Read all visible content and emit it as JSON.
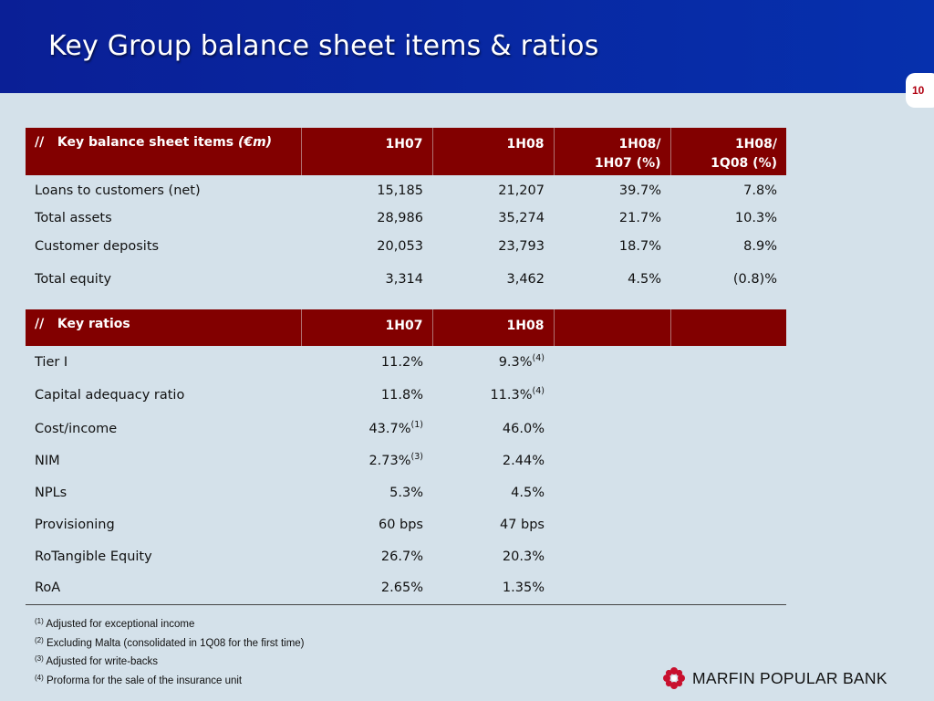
{
  "slide": {
    "title": "Key Group balance sheet items & ratios",
    "page_number": "10",
    "brand": "MARFIN POPULAR BANK",
    "colors": {
      "title_bar": "#0a1f96",
      "table_header": "#820000",
      "background": "#d4e1ea"
    }
  },
  "balance": {
    "headers": {
      "prefix": "//",
      "label": "Key balance sheet items",
      "unit": "(€m)",
      "c1": "1H07",
      "c2": "1H08",
      "c3a": "1H08/",
      "c3b": "1H07 (%)",
      "c4a": "1H08/",
      "c4b": "1Q08 (%)"
    },
    "rows": [
      {
        "label": "Loans to customers (net)",
        "h07": "15,185",
        "h08": "21,207",
        "yoy": "39.7%",
        "qoq": "7.8%"
      },
      {
        "label": "Total assets",
        "h07": "28,986",
        "h08": "35,274",
        "yoy": "21.7%",
        "qoq": "10.3%"
      },
      {
        "label": "Customer deposits",
        "h07": "20,053",
        "h08": "23,793",
        "yoy": "18.7%",
        "qoq": "8.9%"
      },
      {
        "label": "Total equity",
        "h07": "3,314",
        "h08": "3,462",
        "yoy": "4.5%",
        "qoq": "(0.8)%"
      }
    ]
  },
  "ratios": {
    "headers": {
      "prefix": "//",
      "label": "Key ratios",
      "c1": "1H07",
      "c2": "1H08"
    },
    "rows": [
      {
        "label": "Tier I",
        "h07": "11.2%",
        "h07_note": "",
        "h08": "9.3%",
        "h08_note": "(4)"
      },
      {
        "label": "Capital adequacy ratio",
        "h07": "11.8%",
        "h07_note": "",
        "h08": "11.3%",
        "h08_note": "(4)"
      },
      {
        "label": "Cost/income",
        "h07": "43.7%",
        "h07_note": "(1)",
        "h08": "46.0%",
        "h08_note": ""
      },
      {
        "label": "NIM",
        "h07": "2.73%",
        "h07_note": "(3)",
        "h08": "2.44%",
        "h08_note": ""
      },
      {
        "label": "NPLs",
        "h07": "5.3%",
        "h07_note": "",
        "h08": "4.5%",
        "h08_note": ""
      },
      {
        "label": "Provisioning",
        "h07": "60 bps",
        "h07_note": "",
        "h08": "47 bps",
        "h08_note": ""
      },
      {
        "label": "RoTangible Equity",
        "h07": "26.7%",
        "h07_note": "",
        "h08": "20.3%",
        "h08_note": ""
      },
      {
        "label": "RoA",
        "h07": "2.65%",
        "h07_note": "",
        "h08": "1.35%",
        "h08_note": ""
      }
    ]
  },
  "footnotes": [
    {
      "mark": "(1)",
      "text": "Adjusted for exceptional income"
    },
    {
      "mark": "(2)",
      "text": "Excluding Malta (consolidated in 1Q08 for the first time)"
    },
    {
      "mark": "(3)",
      "text": "Adjusted for write-backs"
    },
    {
      "mark": "(4)",
      "text": "Proforma for the sale of the insurance unit"
    }
  ]
}
